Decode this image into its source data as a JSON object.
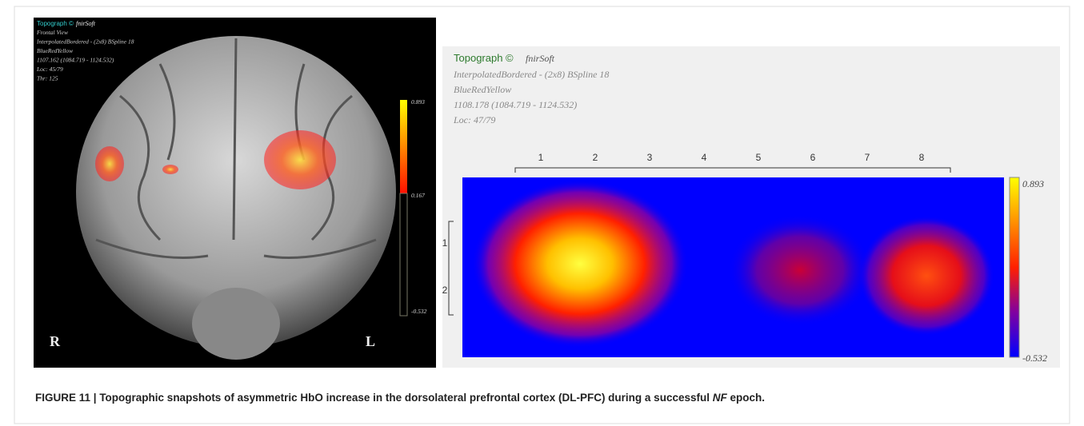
{
  "left_panel": {
    "app_name": "Topograph ©",
    "app_brand": "fnirSoft",
    "lines": [
      "Frontal View",
      "InterpolatedBordered - (2x8) BSpline 18",
      "BlueRedYellow",
      "1107.162 (1084.719 - 1124.532)",
      "Loc: 45/79",
      "Thr: 125"
    ],
    "colorbar_labels": [
      "0.893",
      "0.167",
      "-0.532"
    ],
    "side_labels": [
      "R",
      "L"
    ]
  },
  "right_panel": {
    "app_name": "Topograph ©",
    "app_brand": "fnirSoft",
    "lines": [
      "InterpolatedBordered - (2x8) BSpline 18",
      "BlueRedYellow",
      "1108.178 (1084.719 - 1124.532)",
      "Loc: 47/79"
    ],
    "column_labels": [
      "1",
      "2",
      "3",
      "4",
      "5",
      "6",
      "7",
      "8"
    ],
    "row_labels": [
      "1",
      "2"
    ],
    "colorbar_labels": [
      "0.893",
      "-0.532"
    ]
  },
  "caption": {
    "label": "FIGURE 11 |",
    "text_before": " Topographic snapshots of asymmetric HbO increase in the dorsolateral prefrontal cortex (DL-PFC) during a successful ",
    "emphasis": "NF",
    "text_after": " epoch."
  }
}
